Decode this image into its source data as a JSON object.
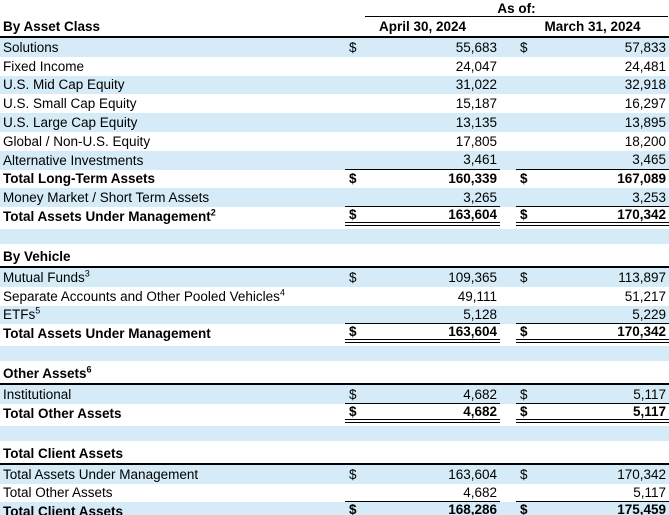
{
  "table": {
    "as_of_label": "As of:",
    "columns": [
      "April 30, 2024",
      "March 31, 2024"
    ],
    "currency_symbol": "$",
    "colors": {
      "row_shade": "#D5EBF7",
      "border": "#000000",
      "text": "#000000"
    },
    "sections": [
      {
        "title": "By Asset Class",
        "title_sup": "",
        "rows": [
          {
            "label": "Solutions",
            "sup": "",
            "bold": false,
            "shade": true,
            "dollar": true,
            "rule": "none",
            "values": [
              "55,683",
              "57,833"
            ]
          },
          {
            "label": "Fixed Income",
            "sup": "",
            "bold": false,
            "shade": false,
            "dollar": false,
            "rule": "none",
            "values": [
              "24,047",
              "24,481"
            ]
          },
          {
            "label": "U.S. Mid Cap Equity",
            "sup": "",
            "bold": false,
            "shade": true,
            "dollar": false,
            "rule": "none",
            "values": [
              "31,022",
              "32,918"
            ]
          },
          {
            "label": "U.S. Small Cap Equity",
            "sup": "",
            "bold": false,
            "shade": false,
            "dollar": false,
            "rule": "none",
            "values": [
              "15,187",
              "16,297"
            ]
          },
          {
            "label": "U.S. Large Cap Equity",
            "sup": "",
            "bold": false,
            "shade": true,
            "dollar": false,
            "rule": "none",
            "values": [
              "13,135",
              "13,895"
            ]
          },
          {
            "label": "Global / Non-U.S. Equity",
            "sup": "",
            "bold": false,
            "shade": false,
            "dollar": false,
            "rule": "none",
            "values": [
              "17,805",
              "18,200"
            ]
          },
          {
            "label": "Alternative Investments",
            "sup": "",
            "bold": false,
            "shade": true,
            "dollar": false,
            "rule": "thin",
            "values": [
              "3,461",
              "3,465"
            ]
          },
          {
            "label": "Total Long-Term Assets",
            "sup": "",
            "bold": true,
            "shade": false,
            "dollar": true,
            "rule": "none",
            "values": [
              "160,339",
              "167,089"
            ]
          },
          {
            "label": "Money Market / Short Term Assets",
            "sup": "",
            "bold": false,
            "shade": true,
            "dollar": false,
            "rule": "thin",
            "values": [
              "3,265",
              "3,253"
            ]
          },
          {
            "label": "Total Assets Under Management",
            "sup": "2",
            "bold": true,
            "shade": false,
            "dollar": true,
            "rule": "double",
            "values": [
              "163,604",
              "170,342"
            ]
          }
        ]
      },
      {
        "title": "By Vehicle",
        "title_sup": "",
        "rows": [
          {
            "label": "Mutual Funds",
            "sup": "3",
            "bold": false,
            "shade": true,
            "dollar": true,
            "rule": "none",
            "values": [
              "109,365",
              "113,897"
            ]
          },
          {
            "label": "Separate Accounts and Other Pooled Vehicles",
            "sup": "4",
            "bold": false,
            "shade": false,
            "dollar": false,
            "rule": "none",
            "values": [
              "49,111",
              "51,217"
            ]
          },
          {
            "label": "ETFs",
            "sup": "5",
            "bold": false,
            "shade": true,
            "dollar": false,
            "rule": "thin",
            "values": [
              "5,128",
              "5,229"
            ]
          },
          {
            "label": "Total Assets Under Management",
            "sup": "",
            "bold": true,
            "shade": false,
            "dollar": true,
            "rule": "double",
            "values": [
              "163,604",
              "170,342"
            ]
          }
        ]
      },
      {
        "title": "Other Assets",
        "title_sup": "6",
        "rows": [
          {
            "label": "Institutional",
            "sup": "",
            "bold": false,
            "shade": true,
            "dollar": true,
            "rule": "thin",
            "values": [
              "4,682",
              "5,117"
            ]
          },
          {
            "label": "Total Other Assets",
            "sup": "",
            "bold": true,
            "shade": false,
            "dollar": true,
            "rule": "double",
            "values": [
              "4,682",
              "5,117"
            ]
          }
        ]
      },
      {
        "title": "Total Client Assets",
        "title_sup": "",
        "rows": [
          {
            "label": "Total Assets Under Management",
            "sup": "",
            "bold": false,
            "shade": true,
            "dollar": true,
            "rule": "none",
            "values": [
              "163,604",
              "170,342"
            ]
          },
          {
            "label": "Total Other Assets",
            "sup": "",
            "bold": false,
            "shade": false,
            "dollar": false,
            "rule": "thin",
            "values": [
              "4,682",
              "5,117"
            ]
          },
          {
            "label": "Total Client Assets",
            "sup": "",
            "bold": true,
            "shade": true,
            "dollar": true,
            "rule": "double",
            "values": [
              "168,286",
              "175,459"
            ]
          }
        ]
      }
    ]
  }
}
